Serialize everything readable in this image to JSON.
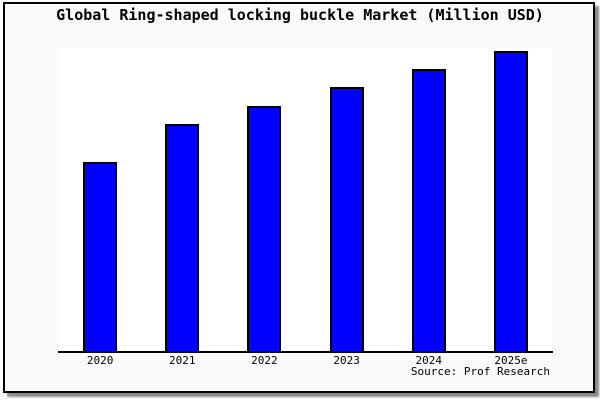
{
  "chart_data": {
    "type": "bar",
    "title": "Global Ring-shaped locking buckle Market (Million USD)",
    "categories": [
      "2020",
      "2021",
      "2022",
      "2023",
      "2024",
      "2025e"
    ],
    "values": [
      63.0,
      75.7,
      81.7,
      88.0,
      94.0,
      100.0
    ],
    "units": "relative index (2025e = 100); no y-axis scale shown in image",
    "ylim": [
      0,
      101
    ],
    "xlabel": "",
    "ylabel": "",
    "grid": false,
    "legend": false
  },
  "source_label": "Source: Prof Research",
  "colors": {
    "bar_fill": "#0000ff",
    "bar_border": "#000000",
    "plot_background": "#ffffff",
    "figure_background": "#fafafa",
    "frame_border": "#000000",
    "title_text": "#000000"
  }
}
